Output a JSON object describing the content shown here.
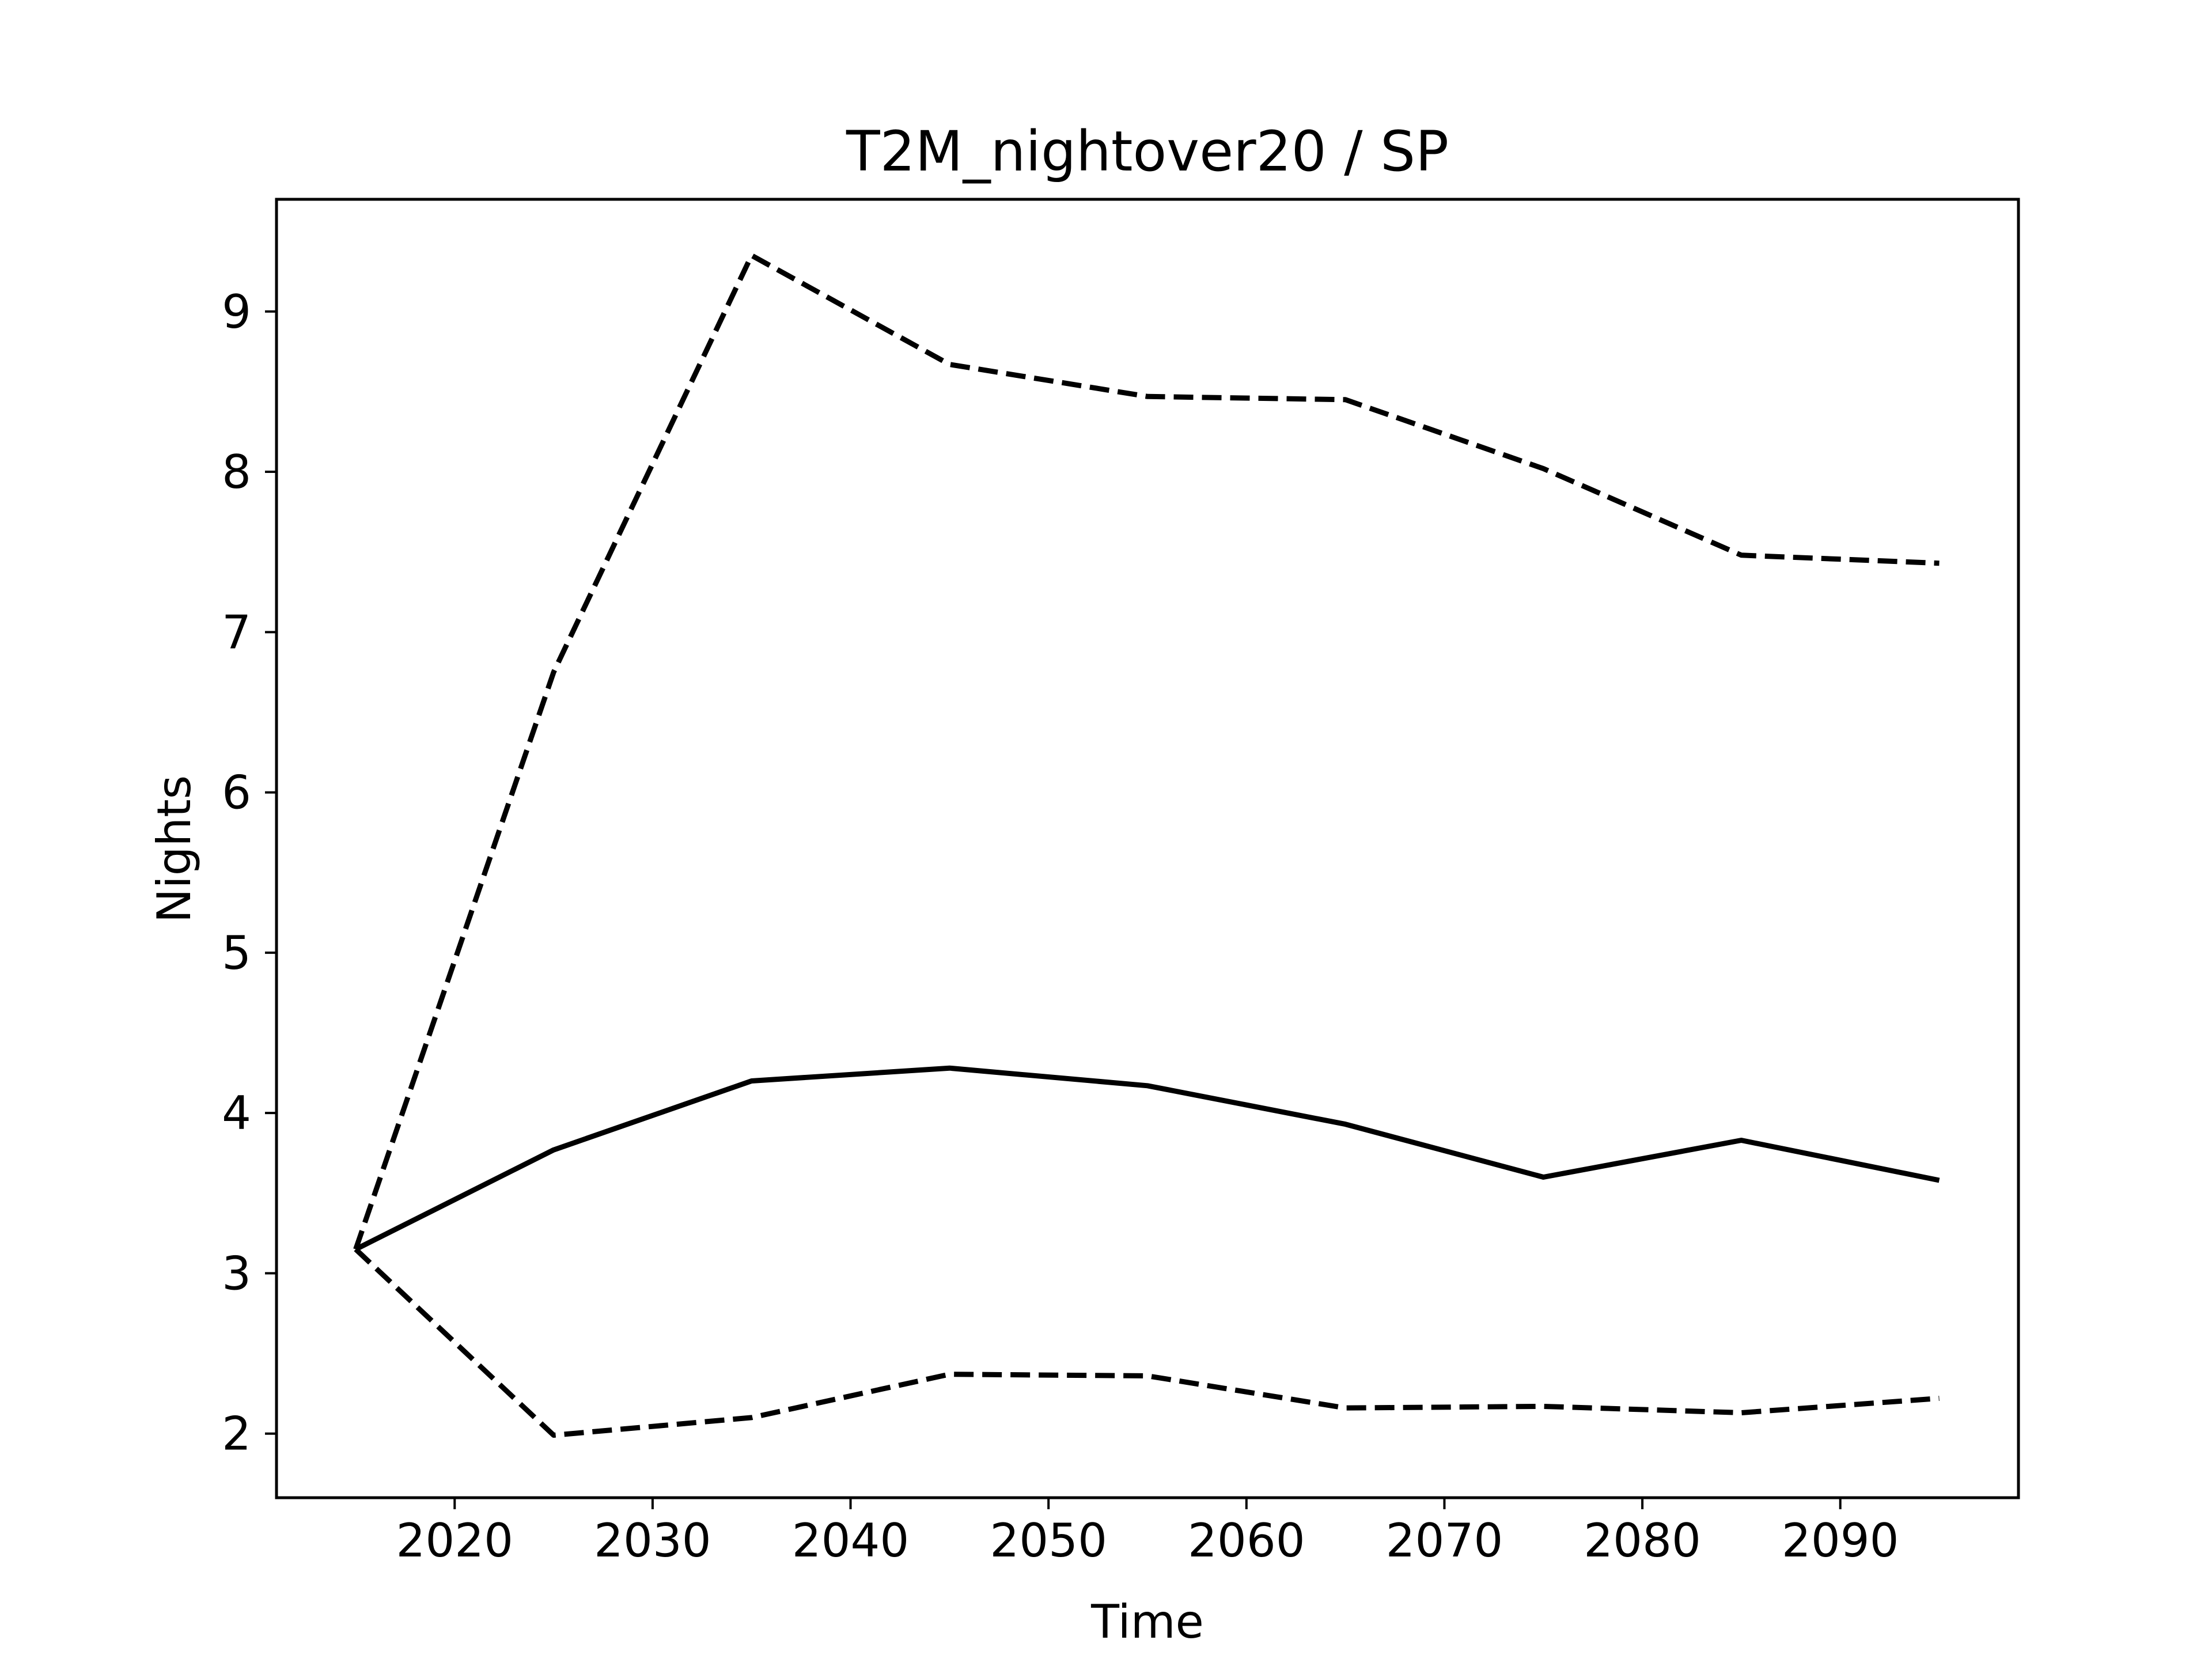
{
  "chart_data": {
    "type": "line",
    "title": "T2M_nightover20 / SP",
    "xlabel": "Time",
    "ylabel": "Nights",
    "xlim": [
      2011,
      2099
    ],
    "ylim": [
      1.6,
      9.7
    ],
    "xticks": [
      2020,
      2030,
      2040,
      2050,
      2060,
      2070,
      2080,
      2090
    ],
    "yticks": [
      2,
      3,
      4,
      5,
      6,
      7,
      8,
      9
    ],
    "grid": false,
    "x": [
      2015,
      2025,
      2035,
      2045,
      2055,
      2065,
      2075,
      2085,
      2095
    ],
    "series": [
      {
        "style": "dashed",
        "color": "#000000",
        "values": [
          3.15,
          6.75,
          9.35,
          8.67,
          8.47,
          8.45,
          8.02,
          7.48,
          7.43
        ]
      },
      {
        "style": "solid",
        "color": "#000000",
        "values": [
          3.15,
          3.77,
          4.2,
          4.28,
          4.17,
          3.93,
          3.6,
          3.83,
          3.58
        ]
      },
      {
        "style": "dashed",
        "color": "#000000",
        "values": [
          3.15,
          1.99,
          2.1,
          2.37,
          2.36,
          2.16,
          2.17,
          2.13,
          2.22
        ]
      }
    ]
  }
}
